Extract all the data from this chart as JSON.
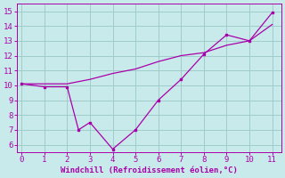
{
  "xlabel": "Windchill (Refroidissement éolien,°C)",
  "background_color": "#c8eaea",
  "line_color": "#aa00aa",
  "grid_color": "#a0cccc",
  "x_zigzag": [
    0,
    1,
    2,
    2.5,
    3,
    4,
    5,
    6,
    7,
    8,
    9,
    10,
    11
  ],
  "y_zigzag": [
    10.1,
    9.9,
    9.9,
    7.0,
    7.5,
    5.7,
    7.0,
    9.0,
    10.4,
    12.1,
    13.4,
    13.0,
    14.9
  ],
  "x_trend": [
    0,
    2,
    3,
    4,
    5,
    6,
    7,
    8,
    9,
    10,
    11
  ],
  "y_trend": [
    10.1,
    10.1,
    10.4,
    10.8,
    11.1,
    11.6,
    12.0,
    12.2,
    12.7,
    13.0,
    14.1
  ],
  "xlim": [
    -0.2,
    11.4
  ],
  "ylim": [
    5.5,
    15.5
  ],
  "xticks": [
    0,
    1,
    2,
    3,
    4,
    5,
    6,
    7,
    8,
    9,
    10,
    11
  ],
  "yticks": [
    6,
    7,
    8,
    9,
    10,
    11,
    12,
    13,
    14,
    15
  ],
  "xlabel_fontsize": 6.5,
  "tick_fontsize": 6.5
}
